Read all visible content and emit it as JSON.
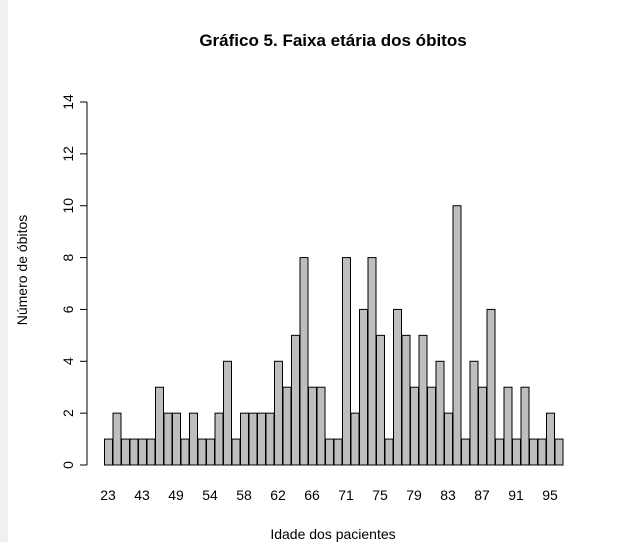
{
  "chart_data": {
    "type": "bar",
    "title": "Gráfico 5. Faixa etária dos óbitos",
    "xlabel": "Idade dos pacientes",
    "ylabel": "Número de óbitos",
    "categories": [
      "23",
      null,
      null,
      null,
      "43",
      null,
      null,
      null,
      "49",
      null,
      null,
      null,
      "54",
      null,
      null,
      null,
      "58",
      null,
      null,
      null,
      "62",
      null,
      null,
      null,
      "66",
      null,
      null,
      null,
      "71",
      null,
      null,
      null,
      "75",
      null,
      null,
      null,
      "79",
      null,
      null,
      null,
      "83",
      null,
      null,
      null,
      "87",
      null,
      null,
      null,
      "91",
      null,
      null,
      null,
      "95",
      null
    ],
    "values": [
      1,
      2,
      1,
      1,
      1,
      1,
      3,
      2,
      2,
      1,
      2,
      1,
      1,
      2,
      4,
      1,
      2,
      2,
      2,
      2,
      4,
      3,
      5,
      8,
      3,
      3,
      1,
      1,
      8,
      2,
      6,
      8,
      5,
      1,
      6,
      5,
      3,
      5,
      3,
      4,
      2,
      10,
      1,
      4,
      3,
      6,
      1,
      3,
      1,
      3,
      1,
      1,
      2,
      1
    ],
    "color": "#bebebe",
    "ylim": [
      0,
      14
    ],
    "yticks": [
      0,
      2,
      4,
      6,
      8,
      10,
      12,
      14
    ]
  }
}
